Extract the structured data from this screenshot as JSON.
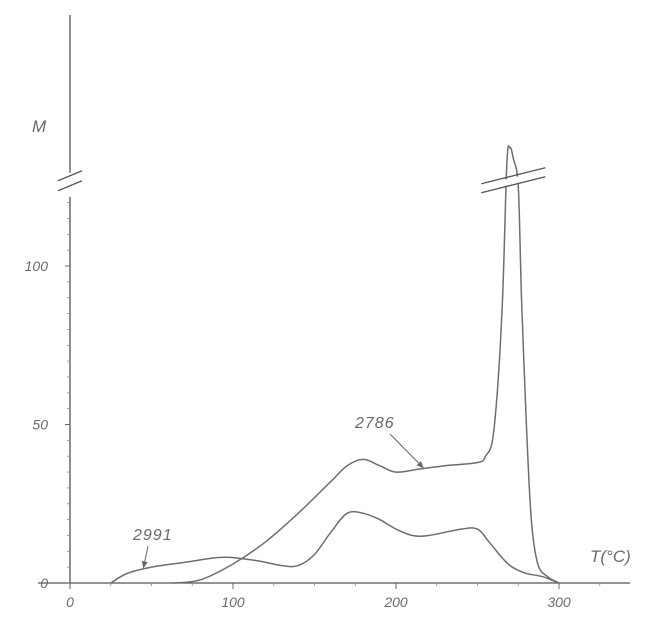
{
  "chart_data": {
    "type": "line",
    "xlabel": "T(°C)",
    "ylabel": "M",
    "xlim": [
      0,
      340
    ],
    "ylim": [
      0,
      180
    ],
    "y_axis_break": true,
    "x_ticks": [
      {
        "value": 0,
        "label": "0"
      },
      {
        "value": 100,
        "label": "100"
      },
      {
        "value": 200,
        "label": "200"
      },
      {
        "value": 300,
        "label": "300"
      }
    ],
    "y_ticks": [
      {
        "value": 0,
        "label": "0"
      },
      {
        "value": 50,
        "label": "50"
      },
      {
        "value": 100,
        "label": "100"
      }
    ],
    "grid": false,
    "series": [
      {
        "name": "2786",
        "x": [
          63,
          80,
          100,
          120,
          140,
          160,
          170,
          180,
          190,
          200,
          215,
          230,
          250,
          255,
          260,
          265,
          268,
          270,
          272,
          275,
          277,
          280,
          283,
          287,
          293,
          300
        ],
        "y": [
          0,
          1,
          6,
          13,
          22,
          32,
          37,
          39,
          37,
          35,
          36,
          37,
          38,
          40,
          48,
          85,
          140,
          155,
          145,
          125,
          90,
          50,
          20,
          6,
          2,
          0
        ]
      },
      {
        "name": "2991",
        "x": [
          25,
          35,
          50,
          70,
          90,
          100,
          115,
          130,
          140,
          150,
          160,
          170,
          180,
          190,
          200,
          210,
          220,
          240,
          250,
          257,
          265,
          270,
          275,
          280,
          290,
          295,
          300
        ],
        "y": [
          0,
          3,
          5,
          6.5,
          8,
          8,
          7,
          5.5,
          5.5,
          9,
          16,
          22,
          22,
          20,
          17,
          15,
          15,
          17,
          17,
          13,
          8,
          5.5,
          4,
          3,
          2,
          1,
          0
        ]
      }
    ],
    "annotations": [
      {
        "text": "2786",
        "series": "2786"
      },
      {
        "text": "2991",
        "series": "2991"
      }
    ],
    "legend": "none"
  }
}
